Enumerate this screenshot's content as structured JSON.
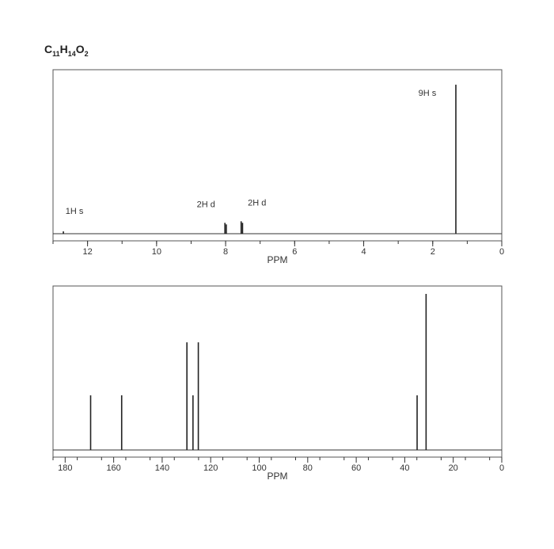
{
  "formula": {
    "c": "C",
    "c_sub": "11",
    "h": "H",
    "h_sub": "14",
    "o": "O",
    "o_sub": "2"
  },
  "chart_data": [
    {
      "type": "line",
      "spectrum": "1H NMR",
      "xlabel": "PPM",
      "x_reversed": true,
      "xlim": [
        13,
        0
      ],
      "x_ticks": [
        12,
        10,
        8,
        6,
        4,
        2,
        0
      ],
      "peaks": [
        {
          "ppm": 12.7,
          "height": 0.015,
          "label": "1H s"
        },
        {
          "ppm": 8.02,
          "height": 0.07,
          "label": "2H d"
        },
        {
          "ppm": 7.98,
          "height": 0.06,
          "label": ""
        },
        {
          "ppm": 7.55,
          "height": 0.08,
          "label": "2H d"
        },
        {
          "ppm": 7.51,
          "height": 0.07,
          "label": ""
        },
        {
          "ppm": 1.33,
          "height": 0.96,
          "label": "9H s"
        }
      ]
    },
    {
      "type": "bar",
      "spectrum": "13C NMR",
      "xlabel": "PPM",
      "x_reversed": true,
      "xlim": [
        185,
        0
      ],
      "x_ticks": [
        180,
        160,
        140,
        120,
        100,
        80,
        60,
        40,
        20,
        0
      ],
      "peaks": [
        {
          "ppm": 169.5,
          "height": 0.35
        },
        {
          "ppm": 156.7,
          "height": 0.35
        },
        {
          "ppm": 129.8,
          "height": 0.69
        },
        {
          "ppm": 127.3,
          "height": 0.35
        },
        {
          "ppm": 125.1,
          "height": 0.69
        },
        {
          "ppm": 34.9,
          "height": 0.35
        },
        {
          "ppm": 31.2,
          "height": 1.0
        }
      ]
    }
  ]
}
